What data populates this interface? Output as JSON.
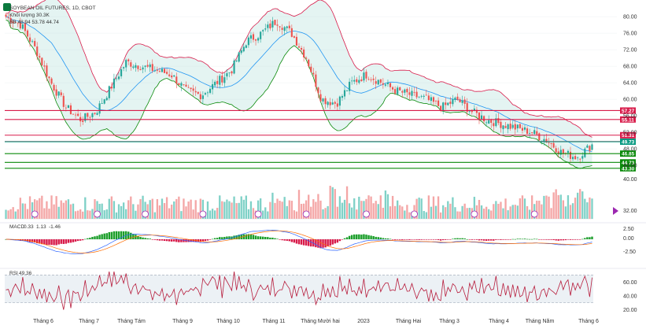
{
  "chart_data": {
    "type": "candlestick",
    "main_title": "SOYBEAN OIL FUTURES, 1D, CBOT",
    "volume_legend": "Khối lượng 30.3K",
    "bb_legend": "BB 48.94 53.78 44.74",
    "price_axis_ticks": [
      "80.00",
      "76.00",
      "72.00",
      "68.00",
      "64.00",
      "60.00",
      "56.00",
      "52.00",
      "48.00",
      "44.00"
    ],
    "price_ylim": [
      42.5,
      82.5
    ],
    "price_levels": [
      {
        "label": "57.27",
        "value": 57.27,
        "color": "#d81b4a"
      },
      {
        "label": "55.11",
        "value": 55.11,
        "color": "#d81b4a"
      },
      {
        "label": "51.31",
        "value": 51.31,
        "color": "#d81b4a"
      },
      {
        "label": "49.77",
        "value": 49.77,
        "color": "#d81b4a"
      },
      {
        "label": "49.73",
        "value": 49.73,
        "color": "#089981"
      },
      {
        "label": "46.85",
        "value": 46.85,
        "color": "#0a8a0a"
      },
      {
        "label": "44.73",
        "value": 44.73,
        "color": "#0a8a0a"
      },
      {
        "label": "43.30",
        "value": 43.3,
        "color": "#0a8a0a"
      }
    ],
    "volume_axis_ticks": [
      "40.00",
      "32.00"
    ],
    "macd_legend": {
      "name": "MACD",
      "values": [
        "0.33",
        "1.13",
        "-1.46"
      ]
    },
    "macd_axis_ticks": [
      "2.50",
      "0.00",
      "-2.50"
    ],
    "rsi_legend": {
      "name": "RSI",
      "value": "49.36"
    },
    "rsi_axis_ticks": [
      "60.00",
      "40.00",
      "20.00"
    ],
    "x_tick_labels": [
      "Tháng 6",
      "Tháng 7",
      "Tháng Tám",
      "Tháng 9",
      "Tháng 10",
      "Tháng 11",
      "Tháng Mười hai",
      "2023",
      "Tháng Hai",
      "Tháng 3",
      "Tháng 4",
      "Tháng Năm",
      "Tháng 6"
    ],
    "close_anchors": [
      80,
      78,
      72,
      64,
      58,
      55,
      57,
      63,
      69,
      68,
      67,
      66,
      62,
      61,
      64,
      67,
      74,
      76,
      79,
      76,
      70,
      60,
      59,
      64,
      66,
      64,
      62,
      61,
      60,
      58,
      60,
      57,
      55,
      54,
      53,
      52,
      50,
      47,
      46,
      49
    ],
    "colors": {
      "up": "#26a69a",
      "down": "#ef5350",
      "bb_basis": "#2196f3",
      "bb_upper": "#d81b4a",
      "bb_lower": "#0a8a0a",
      "bb_fill": "#b2dfdb",
      "macd": "#2962ff",
      "signal": "#ff6d00",
      "rsi": "#b71c3c",
      "rsi_band": "#e0e7ef"
    }
  }
}
